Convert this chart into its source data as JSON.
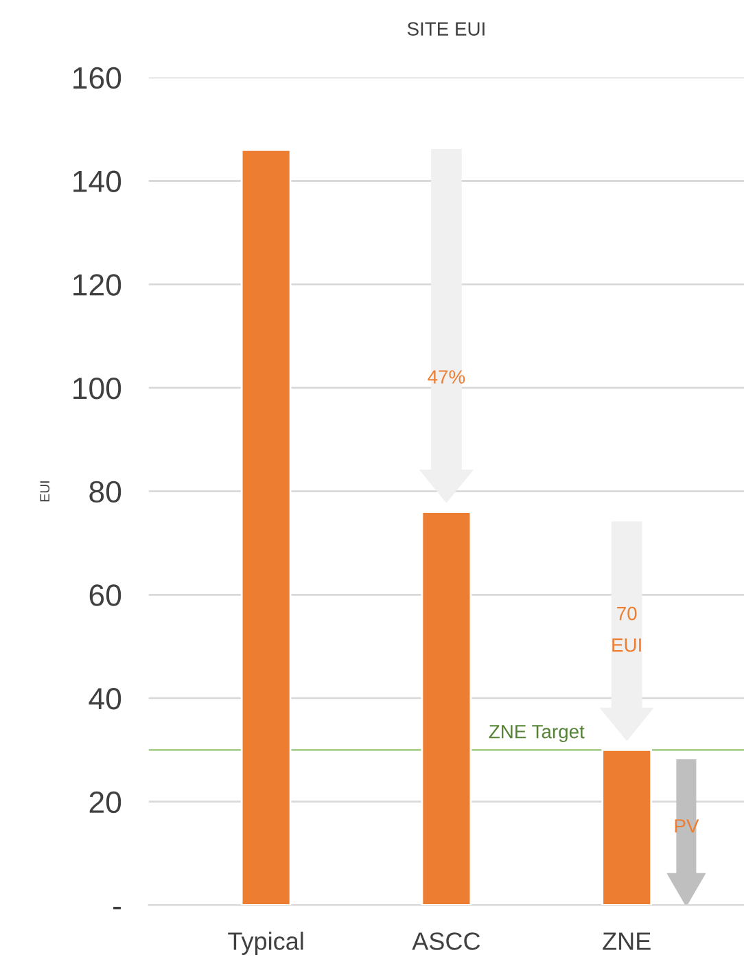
{
  "chart_data": {
    "type": "bar",
    "title": "SITE EUI",
    "ylabel": "EUI",
    "categories": [
      "Typical",
      "ASCC",
      "ZNE"
    ],
    "values": [
      146,
      76,
      30
    ],
    "color": "#ed7d31",
    "ylim": [
      0,
      160
    ],
    "yticks": [
      {
        "value": 0,
        "label": "-"
      },
      20,
      40,
      60,
      80,
      100,
      120,
      140,
      160
    ],
    "grid": "y",
    "ref_lines": [
      {
        "axis": "y",
        "value": 30,
        "label": "ZNE Target",
        "color": "#a9d18e"
      }
    ],
    "annotations": [
      "47%",
      "70\nEUI",
      "PV"
    ]
  }
}
